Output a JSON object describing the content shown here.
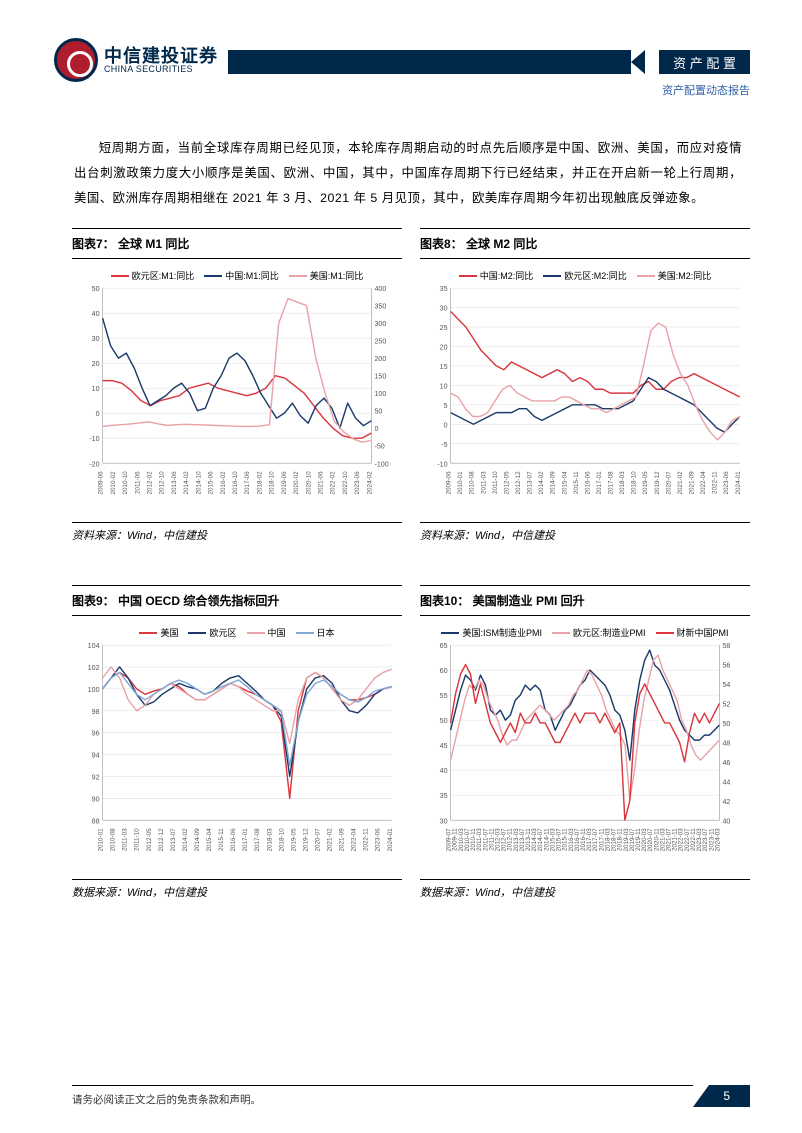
{
  "header": {
    "logo_cn": "中信建投证券",
    "logo_en": "CHINA SECURITIES",
    "badge": "资 产 配 置",
    "subtitle": "资产配置动态报告"
  },
  "paragraph": "短周期方面，当前全球库存周期已经见顶，本轮库存周期启动的时点先后顺序是中国、欧洲、美国，而应对疫情出台刺激政策力度大小顺序是美国、欧洲、中国，其中，中国库存周期下行已经结束，并正在开启新一轮上行周期，美国、欧洲库存周期相继在 2021 年 3 月、2021 年 5 月见顶，其中，欧美库存周期今年初出现触底反弹迹象。",
  "colors": {
    "red": "#d9363e",
    "navy": "#1b3a6b",
    "pink": "#e9a3a8",
    "lightblue": "#7fa9d4",
    "grid": "#dddddd",
    "axis": "#888888"
  },
  "chart7": {
    "title": "图表7：  全球 M1 同比",
    "source": "资料来源：Wind，中信建投",
    "legend": [
      {
        "label": "欧元区:M1:同比",
        "color": "#d9363e"
      },
      {
        "label": "中国:M1:同比",
        "color": "#1b3a6b"
      },
      {
        "label": "美国:M1:同比",
        "color": "#e9a3a8"
      }
    ],
    "y_left": {
      "min": -20,
      "max": 50,
      "step": 10
    },
    "y_right": {
      "min": -100,
      "max": 400,
      "step": 50
    },
    "x_labels": [
      "2009-06",
      "2010-02",
      "2010-10",
      "2011-06",
      "2012-02",
      "2012-10",
      "2013-06",
      "2014-02",
      "2014-10",
      "2015-06",
      "2016-02",
      "2016-10",
      "2017-06",
      "2018-02",
      "2018-10",
      "2019-06",
      "2020-02",
      "2020-10",
      "2021-06",
      "2022-02",
      "2022-10",
      "2023-06",
      "2024-02"
    ],
    "series": {
      "eu": [
        13,
        13,
        12,
        9,
        5,
        3,
        5,
        6,
        7,
        10,
        11,
        12,
        10,
        9,
        8,
        7,
        8,
        10,
        15,
        14,
        11,
        8,
        3,
        -2,
        -6,
        -9,
        -10,
        -10,
        -8
      ],
      "cn": [
        38,
        27,
        22,
        24,
        18,
        10,
        3,
        5,
        7,
        10,
        12,
        8,
        1,
        2,
        10,
        15,
        22,
        24,
        21,
        15,
        8,
        3,
        -2,
        0,
        4,
        -1,
        -4,
        3,
        6,
        2,
        -6,
        4,
        -2,
        -5,
        -3
      ],
      "us_r": [
        5,
        8,
        10,
        12,
        15,
        18,
        12,
        8,
        10,
        11,
        10,
        9,
        8,
        7,
        6,
        5,
        5,
        6,
        10,
        300,
        370,
        360,
        350,
        200,
        100,
        20,
        -10,
        -30,
        -40,
        -35
      ]
    }
  },
  "chart8": {
    "title": "图表8：  全球 M2 同比",
    "source": "资料来源：Wind，中信建投",
    "legend": [
      {
        "label": "中国:M2:同比",
        "color": "#d9363e"
      },
      {
        "label": "欧元区:M2:同比",
        "color": "#1b3a6b"
      },
      {
        "label": "美国:M2:同比",
        "color": "#e9a3a8"
      }
    ],
    "y_left": {
      "min": -10,
      "max": 35,
      "step": 5
    },
    "x_labels": [
      "2009-06",
      "2010-01",
      "2010-08",
      "2011-03",
      "2011-10",
      "2012-05",
      "2012-12",
      "2013-07",
      "2014-02",
      "2014-09",
      "2015-04",
      "2015-11",
      "2016-06",
      "2017-01",
      "2017-08",
      "2018-03",
      "2018-10",
      "2019-05",
      "2019-12",
      "2020-07",
      "2021-02",
      "2021-09",
      "2022-04",
      "2022-11",
      "2023-06",
      "2024-01"
    ],
    "series": {
      "cn": [
        29,
        27,
        25,
        22,
        19,
        17,
        15,
        14,
        16,
        15,
        14,
        13,
        12,
        13,
        14,
        13,
        11,
        12,
        11,
        9,
        9,
        8,
        8,
        8,
        8,
        10,
        11,
        9,
        9,
        11,
        12,
        12,
        13,
        12,
        11,
        10,
        9,
        8,
        7
      ],
      "eu": [
        3,
        2,
        1,
        0,
        1,
        2,
        3,
        3,
        3,
        4,
        4,
        2,
        1,
        2,
        3,
        4,
        5,
        5,
        5,
        5,
        4,
        4,
        4,
        5,
        6,
        9,
        12,
        11,
        9,
        8,
        7,
        6,
        5,
        3,
        1,
        -1,
        -2,
        0,
        2
      ],
      "us": [
        8,
        7,
        4,
        2,
        2,
        3,
        6,
        9,
        10,
        8,
        7,
        6,
        6,
        6,
        6,
        7,
        7,
        6,
        5,
        4,
        4,
        3,
        4,
        5,
        6,
        7,
        15,
        24,
        26,
        25,
        18,
        13,
        10,
        5,
        1,
        -2,
        -4,
        -2,
        1,
        2
      ]
    }
  },
  "chart9": {
    "title": "图表9：  中国 OECD 综合领先指标回升",
    "source": "数据来源：Wind，中信建投",
    "legend": [
      {
        "label": "美国",
        "color": "#d9363e"
      },
      {
        "label": "欧元区",
        "color": "#1b3a6b"
      },
      {
        "label": "中国",
        "color": "#e9a3a8"
      },
      {
        "label": "日本",
        "color": "#7fa9d4"
      }
    ],
    "y_left": {
      "min": 88,
      "max": 104,
      "step": 2
    },
    "x_labels": [
      "2010-01",
      "2010-08",
      "2011-03",
      "2011-10",
      "2012-05",
      "2012-12",
      "2013-07",
      "2014-02",
      "2014-09",
      "2015-04",
      "2015-11",
      "2016-06",
      "2017-01",
      "2017-08",
      "2018-03",
      "2018-10",
      "2019-05",
      "2019-12",
      "2020-07",
      "2021-02",
      "2021-09",
      "2022-04",
      "2022-11",
      "2023-06",
      "2024-01"
    ],
    "series": {
      "us": [
        100,
        101,
        101.5,
        101,
        100,
        99.5,
        99.8,
        100,
        100.5,
        100.2,
        99.5,
        99,
        99,
        99.5,
        100,
        100.5,
        100.2,
        99.8,
        99.5,
        99,
        98.5,
        97,
        90,
        98,
        101,
        101.5,
        101,
        100,
        99.5,
        99,
        99,
        99.2,
        99.5,
        100,
        100.2
      ],
      "eu": [
        100,
        101,
        102,
        101,
        99.5,
        98.5,
        98.8,
        99.5,
        100,
        100.5,
        100.2,
        100,
        99.5,
        99.8,
        100.5,
        101,
        101.2,
        100.5,
        99.8,
        99,
        98.5,
        97.5,
        92,
        97,
        100,
        101,
        101.2,
        100.5,
        99,
        98,
        97.8,
        98.5,
        99.5,
        100,
        100.2
      ],
      "cn": [
        101,
        102,
        101,
        99,
        98,
        98.5,
        99.5,
        100,
        100.5,
        100,
        99.5,
        99,
        99,
        99.5,
        100,
        100.5,
        100.2,
        99.5,
        99,
        98.5,
        98,
        98,
        95,
        99,
        101,
        101.5,
        101,
        100,
        99,
        98.5,
        99,
        100,
        101,
        101.5,
        101.8
      ],
      "jp": [
        100,
        101,
        101.5,
        100.5,
        99.5,
        99,
        99.5,
        100,
        100.5,
        100.8,
        100.5,
        100,
        99.5,
        99.8,
        100.2,
        100.5,
        100.8,
        100.2,
        99.5,
        99,
        98.5,
        98,
        93,
        97,
        99.5,
        100.5,
        100.8,
        100.2,
        99.5,
        99,
        98.8,
        99.2,
        99.8,
        100,
        100.2
      ]
    }
  },
  "chart10": {
    "title": "图表10：  美国制造业 PMI 回升",
    "source": "数据来源：Wind，中信建投",
    "legend": [
      {
        "label": "美国:ISM制造业PMI",
        "color": "#1b3a6b"
      },
      {
        "label": "欧元区:制造业PMI",
        "color": "#e9a3a8"
      },
      {
        "label": "财新中国PMI",
        "color": "#d9363e"
      }
    ],
    "y_left": {
      "min": 30,
      "max": 65,
      "step": 5
    },
    "y_right": {
      "min": 40,
      "max": 58,
      "step": 2
    },
    "x_labels": [
      "2009-07",
      "2009-11",
      "2010-03",
      "2010-07",
      "2010-11",
      "2011-03",
      "2011-07",
      "2011-11",
      "2012-03",
      "2012-07",
      "2012-11",
      "2013-03",
      "2013-07",
      "2013-11",
      "2014-03",
      "2014-07",
      "2014-11",
      "2015-03",
      "2015-07",
      "2015-11",
      "2016-03",
      "2016-07",
      "2016-11",
      "2017-03",
      "2017-07",
      "2017-11",
      "2018-03",
      "2018-07",
      "2018-11",
      "2019-03",
      "2019-07",
      "2019-11",
      "2020-03",
      "2020-07",
      "2020-11",
      "2021-03",
      "2021-07",
      "2021-11",
      "2022-03",
      "2022-07",
      "2022-11",
      "2023-03",
      "2023-07",
      "2023-11",
      "2024-03"
    ],
    "series": {
      "us": [
        48,
        52,
        56,
        59,
        58,
        56,
        59,
        57,
        52,
        51,
        52,
        50,
        51,
        54,
        55,
        57,
        56,
        57,
        56,
        52,
        51,
        48,
        50,
        52,
        53,
        55,
        57,
        58,
        60,
        59,
        58,
        57,
        55,
        52,
        51,
        48,
        42,
        52,
        58,
        62,
        64,
        61,
        60,
        58,
        56,
        53,
        50,
        48,
        47,
        46,
        46,
        47,
        47,
        48,
        49
      ],
      "eu": [
        42,
        46,
        50,
        54,
        57,
        56,
        58,
        57,
        54,
        52,
        50,
        47,
        45,
        46,
        46,
        48,
        50,
        51,
        52,
        53,
        52,
        51,
        50,
        51,
        52,
        53,
        55,
        56,
        58,
        60,
        59,
        57,
        55,
        52,
        50,
        48,
        47,
        45,
        34,
        40,
        48,
        54,
        58,
        62,
        63,
        60,
        58,
        56,
        54,
        50,
        48,
        45,
        43,
        42,
        43,
        44,
        45,
        46
      ],
      "cn_r": [
        50,
        53,
        55,
        56,
        55,
        52,
        54,
        52,
        50,
        49,
        48,
        49,
        50,
        49,
        51,
        50,
        50,
        51,
        50,
        50,
        49,
        48,
        48,
        49,
        50,
        51,
        50,
        51,
        51,
        51,
        50,
        51,
        50,
        49,
        50,
        40,
        42,
        50,
        53,
        54,
        53,
        52,
        51,
        50,
        50,
        49,
        48,
        46,
        49,
        51,
        50,
        51,
        50,
        51,
        52
      ]
    }
  },
  "footer": {
    "disclaimer": "请务必阅读正文之后的免责条款和声明。",
    "page": "5"
  }
}
